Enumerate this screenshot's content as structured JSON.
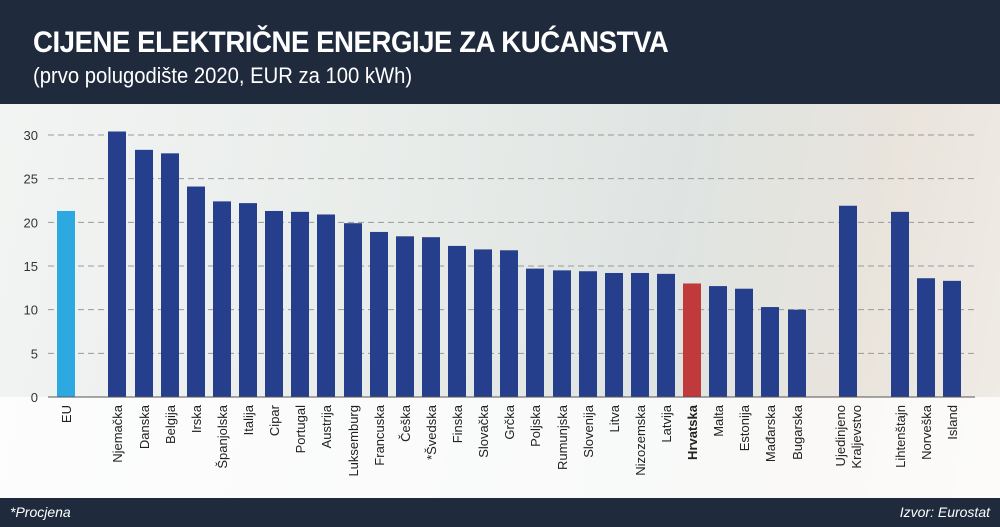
{
  "header": {
    "title": "CIJENE ELEKTRIČNE ENERGIJE ZA KUĆANSTVA",
    "subtitle": "(prvo polugodište 2020, EUR za 100 kWh)"
  },
  "footer": {
    "note": "*Procjena",
    "source": "Izvor: Eurostat"
  },
  "colors": {
    "eu": "#2da9e1",
    "default": "#253f8c",
    "highlight": "#c0393b",
    "header_bg": "#1f2a3d"
  },
  "chart_data": {
    "type": "bar",
    "title": "CIJENE ELEKTRIČNE ENERGIJE ZA KUĆANSTVA",
    "subtitle": "(prvo polugodište 2020, EUR za 100 kWh)",
    "xlabel": "",
    "ylabel": "",
    "ylim": [
      0,
      30
    ],
    "yticks": [
      0,
      5,
      10,
      15,
      20,
      25,
      30
    ],
    "grid": "horizontal dashed",
    "categories": [
      "EU",
      "Njemačka",
      "Danska",
      "Belgija",
      "Irska",
      "Španjolska",
      "Italija",
      "Cipar",
      "Portugal",
      "Austrija",
      "Luksemburg",
      "Francuska",
      "Češka",
      "*Švedska",
      "Finska",
      "Slovačka",
      "Grčka",
      "Poljska",
      "Rumunjska",
      "Slovenija",
      "Litva",
      "Nizozemska",
      "Latvija",
      "Hrvatska",
      "Malta",
      "Estonija",
      "Mađarska",
      "Bugarska",
      "Ujedinjeno Kraljevstvo",
      "Lihtenštajn",
      "Norveška",
      "Island"
    ],
    "values": [
      21.3,
      30.4,
      28.3,
      27.9,
      24.1,
      22.4,
      22.2,
      21.3,
      21.2,
      20.9,
      19.9,
      18.9,
      18.4,
      18.3,
      17.3,
      16.9,
      16.8,
      14.7,
      14.5,
      14.4,
      14.2,
      14.2,
      14.1,
      13.0,
      12.7,
      12.4,
      10.3,
      10.0,
      21.9,
      21.2,
      13.6,
      13.3
    ],
    "highlight_bold": [
      "Hrvatska"
    ]
  }
}
